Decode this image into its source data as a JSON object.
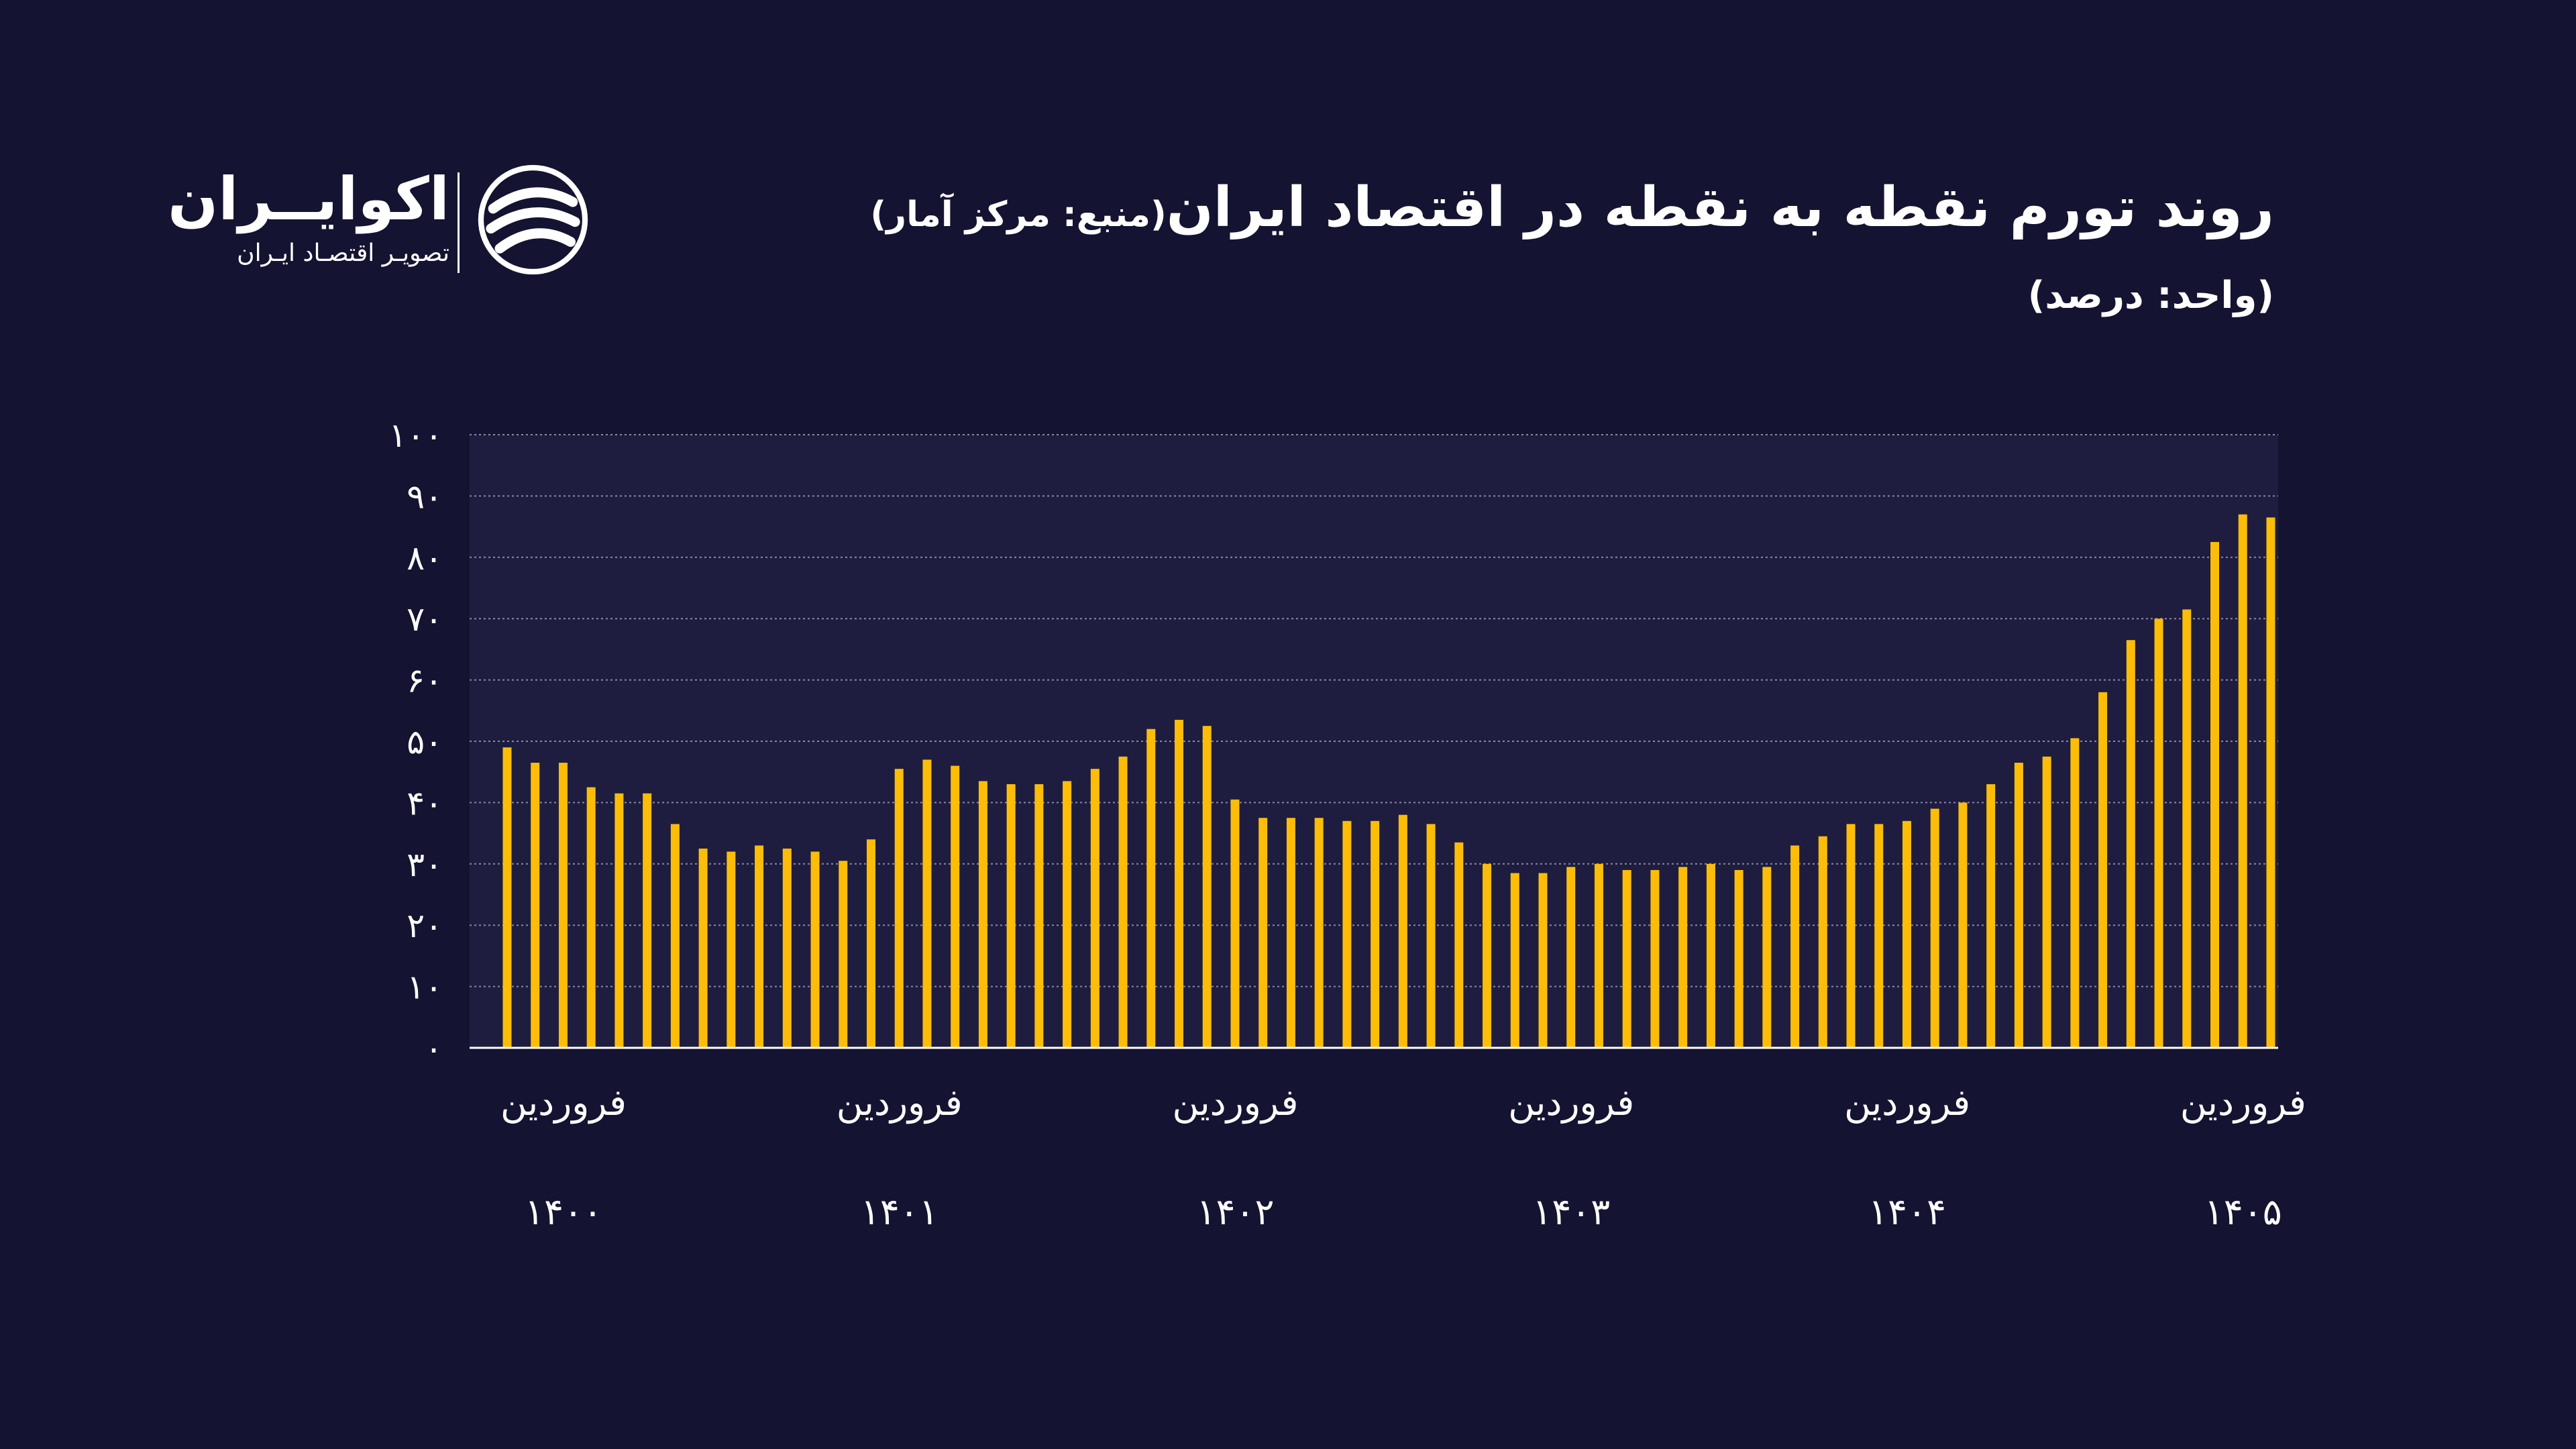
{
  "header": {
    "title": "روند تورم نقطه به نقطه در اقتصاد ایران",
    "source": "(منبع: مرکز آمار)",
    "unit": "(واحد: درصد)"
  },
  "brand": {
    "name": "اکوایــران",
    "tagline": "تصویـر اقتصـاد ایـران",
    "logo_icon": "ecoiran-swirl-icon"
  },
  "colors": {
    "background": "#141331",
    "plot_background": "#1f1d3f",
    "bar": "#fbbd08",
    "grid": "#8a8aa6",
    "text": "#ffffff"
  },
  "chart_data": {
    "type": "bar",
    "title": "روند تورم نقطه به نقطه در اقتصاد ایران",
    "ylabel": "(واحد: درصد)",
    "ylim": [
      0,
      100
    ],
    "yticks": [
      0,
      10,
      20,
      30,
      40,
      50,
      60,
      70,
      80,
      90,
      100
    ],
    "ytick_labels": [
      "۰",
      "۱۰",
      "۲۰",
      "۳۰",
      "۴۰",
      "۵۰",
      "۶۰",
      "۷۰",
      "۸۰",
      "۹۰",
      "۱۰۰"
    ],
    "grid": true,
    "month_label": "فروردین",
    "year_labels": [
      "۱۴۰۰",
      "۱۴۰۱",
      "۱۴۰۲",
      "۱۴۰۳",
      "۱۴۰۴",
      "۱۴۰۵"
    ],
    "series": [
      {
        "values": [
          49.0,
          46.5,
          46.5,
          42.5,
          41.5,
          41.5,
          36.5,
          32.5,
          32.0,
          33.0,
          32.5,
          32.0,
          30.5,
          34.0,
          45.5,
          47.0,
          46.0,
          43.5,
          43.0,
          43.0,
          43.5,
          45.5,
          47.5,
          52.0,
          53.5,
          52.5,
          40.5,
          37.5,
          37.5,
          37.5,
          37.0,
          37.0,
          38.0,
          36.5,
          33.5,
          30.0,
          28.5,
          28.5,
          29.5,
          30.0,
          29.0,
          29.0,
          29.5,
          30.0,
          29.0,
          29.5,
          33.0,
          34.5,
          36.5,
          36.5,
          37.0,
          39.0,
          40.0,
          43.0,
          46.5,
          47.5,
          50.5,
          58.0,
          66.5,
          70.0,
          71.5,
          82.5,
          87.0,
          86.5
        ]
      }
    ]
  }
}
